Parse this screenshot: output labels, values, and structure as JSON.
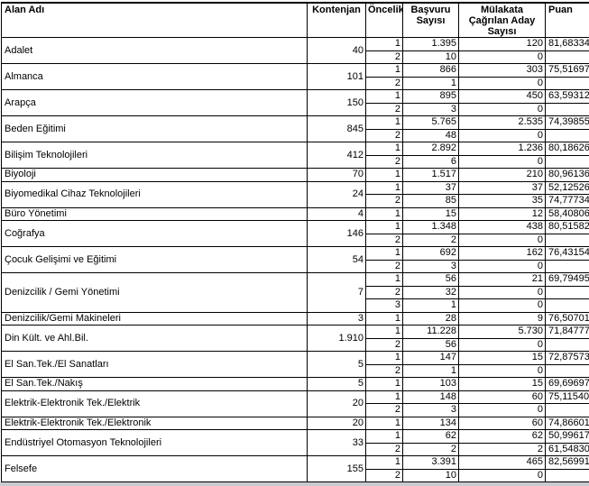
{
  "colors": {
    "border": "#000000",
    "text": "#000000",
    "background": "#ffffff",
    "window_edge": "#c8cbd0"
  },
  "table": {
    "headers": {
      "alan_adi": "Alan Adı",
      "kontenjan": "Kontenjan",
      "oncelik": "Öncelik",
      "basvuru": "Başvuru Sayısı",
      "mulakata": "Mülakata Çağrılan Aday Sayısı",
      "puan": "Puan"
    },
    "rows": [
      {
        "alan": "Adalet",
        "kontenjan": "40",
        "subs": [
          {
            "oncelik": "1",
            "basvuru": "1.395",
            "mulakata": "120",
            "puan": "81,68334"
          },
          {
            "oncelik": "2",
            "basvuru": "10",
            "mulakata": "0",
            "puan": ""
          }
        ]
      },
      {
        "alan": "Almanca",
        "kontenjan": "101",
        "subs": [
          {
            "oncelik": "1",
            "basvuru": "866",
            "mulakata": "303",
            "puan": "75,51697"
          },
          {
            "oncelik": "2",
            "basvuru": "1",
            "mulakata": "0",
            "puan": ""
          }
        ]
      },
      {
        "alan": "Arapça",
        "kontenjan": "150",
        "subs": [
          {
            "oncelik": "1",
            "basvuru": "895",
            "mulakata": "450",
            "puan": "63,59312"
          },
          {
            "oncelik": "2",
            "basvuru": "3",
            "mulakata": "0",
            "puan": ""
          }
        ]
      },
      {
        "alan": "Beden Eğitimi",
        "kontenjan": "845",
        "subs": [
          {
            "oncelik": "1",
            "basvuru": "5.765",
            "mulakata": "2.535",
            "puan": "74,39855"
          },
          {
            "oncelik": "2",
            "basvuru": "48",
            "mulakata": "0",
            "puan": ""
          }
        ]
      },
      {
        "alan": "Bilişim Teknolojileri",
        "kontenjan": "412",
        "subs": [
          {
            "oncelik": "1",
            "basvuru": "2.892",
            "mulakata": "1.236",
            "puan": "80,18626"
          },
          {
            "oncelik": "2",
            "basvuru": "6",
            "mulakata": "0",
            "puan": ""
          }
        ]
      },
      {
        "alan": "Biyoloji",
        "kontenjan": "70",
        "subs": [
          {
            "oncelik": "1",
            "basvuru": "1.517",
            "mulakata": "210",
            "puan": "80,96136"
          }
        ]
      },
      {
        "alan": "Biyomedikal Cihaz Teknolojileri",
        "kontenjan": "24",
        "subs": [
          {
            "oncelik": "1",
            "basvuru": "37",
            "mulakata": "37",
            "puan": "52,12526"
          },
          {
            "oncelik": "2",
            "basvuru": "85",
            "mulakata": "35",
            "puan": "74,77734"
          }
        ]
      },
      {
        "alan": "Büro Yönetimi",
        "kontenjan": "4",
        "subs": [
          {
            "oncelik": "1",
            "basvuru": "15",
            "mulakata": "12",
            "puan": "58,40806"
          }
        ]
      },
      {
        "alan": "Coğrafya",
        "kontenjan": "146",
        "subs": [
          {
            "oncelik": "1",
            "basvuru": "1.348",
            "mulakata": "438",
            "puan": "80,51582"
          },
          {
            "oncelik": "2",
            "basvuru": "2",
            "mulakata": "0",
            "puan": ""
          }
        ]
      },
      {
        "alan": "Çocuk Gelişimi ve Eğitimi",
        "kontenjan": "54",
        "subs": [
          {
            "oncelik": "1",
            "basvuru": "692",
            "mulakata": "162",
            "puan": "76,43154"
          },
          {
            "oncelik": "2",
            "basvuru": "3",
            "mulakata": "0",
            "puan": ""
          }
        ]
      },
      {
        "alan": "Denizcilik / Gemi Yönetimi",
        "kontenjan": "7",
        "subs": [
          {
            "oncelik": "1",
            "basvuru": "56",
            "mulakata": "21",
            "puan": "69,79495"
          },
          {
            "oncelik": "2",
            "basvuru": "32",
            "mulakata": "0",
            "puan": ""
          },
          {
            "oncelik": "3",
            "basvuru": "1",
            "mulakata": "0",
            "puan": ""
          }
        ]
      },
      {
        "alan": "Denizcilik/Gemi Makineleri",
        "kontenjan": "3",
        "subs": [
          {
            "oncelik": "1",
            "basvuru": "28",
            "mulakata": "9",
            "puan": "76,50701"
          }
        ]
      },
      {
        "alan": "Din Kült. ve Ahl.Bil.",
        "kontenjan": "1.910",
        "subs": [
          {
            "oncelik": "1",
            "basvuru": "11.228",
            "mulakata": "5.730",
            "puan": "71,84777"
          },
          {
            "oncelik": "2",
            "basvuru": "56",
            "mulakata": "0",
            "puan": ""
          }
        ]
      },
      {
        "alan": "El San.Tek./El Sanatları",
        "kontenjan": "5",
        "subs": [
          {
            "oncelik": "1",
            "basvuru": "147",
            "mulakata": "15",
            "puan": "72,87573"
          },
          {
            "oncelik": "2",
            "basvuru": "1",
            "mulakata": "0",
            "puan": ""
          }
        ]
      },
      {
        "alan": "El San.Tek./Nakış",
        "kontenjan": "5",
        "subs": [
          {
            "oncelik": "1",
            "basvuru": "103",
            "mulakata": "15",
            "puan": "69,69697"
          }
        ]
      },
      {
        "alan": "Elektrik-Elektronik Tek./Elektrik",
        "kontenjan": "20",
        "subs": [
          {
            "oncelik": "1",
            "basvuru": "148",
            "mulakata": "60",
            "puan": "75,11540"
          },
          {
            "oncelik": "2",
            "basvuru": "3",
            "mulakata": "0",
            "puan": ""
          }
        ]
      },
      {
        "alan": "Elektrik-Elektronik Tek./Elektronik",
        "kontenjan": "20",
        "subs": [
          {
            "oncelik": "1",
            "basvuru": "134",
            "mulakata": "60",
            "puan": "74,86601"
          }
        ]
      },
      {
        "alan": "Endüstriyel Otomasyon Teknolojileri",
        "kontenjan": "33",
        "subs": [
          {
            "oncelik": "1",
            "basvuru": "62",
            "mulakata": "62",
            "puan": "50,99617"
          },
          {
            "oncelik": "2",
            "basvuru": "2",
            "mulakata": "2",
            "puan": "61,54830"
          }
        ]
      },
      {
        "alan": "Felsefe",
        "kontenjan": "155",
        "subs": [
          {
            "oncelik": "1",
            "basvuru": "3.391",
            "mulakata": "465",
            "puan": "82,56991"
          },
          {
            "oncelik": "2",
            "basvuru": "10",
            "mulakata": "0",
            "puan": ""
          }
        ]
      }
    ]
  }
}
